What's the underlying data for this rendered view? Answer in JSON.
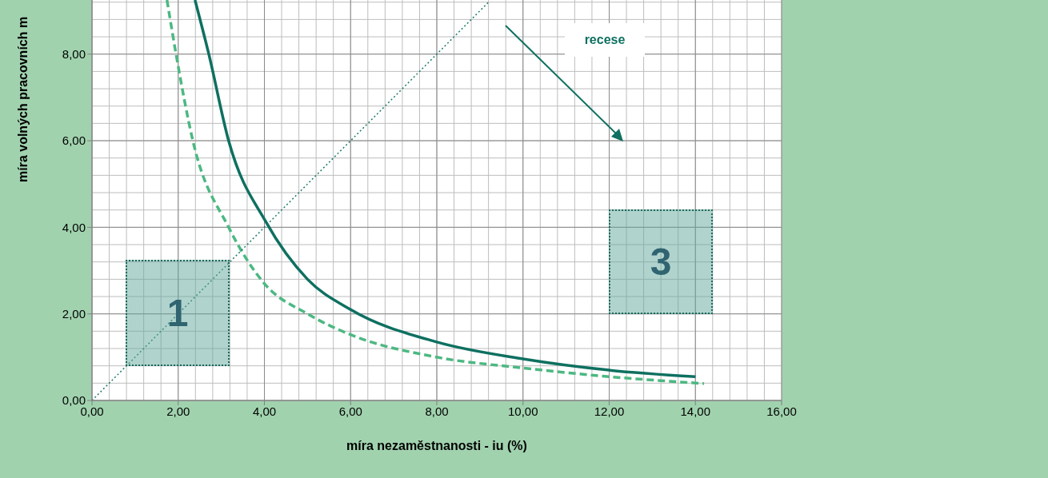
{
  "chart_data": {
    "type": "line",
    "xlabel": "míra nezaměstnanosti  - iu (%)",
    "ylabel": "míra volných pracovních m",
    "xlim": [
      0,
      16
    ],
    "xticks": [
      {
        "value": 0,
        "label": "0,00"
      },
      {
        "value": 2,
        "label": "2,00"
      },
      {
        "value": 4,
        "label": "4,00"
      },
      {
        "value": 6,
        "label": "6,00"
      },
      {
        "value": 8,
        "label": "8,00"
      },
      {
        "value": 10,
        "label": "10,00"
      },
      {
        "value": 12,
        "label": "12,00"
      },
      {
        "value": 14,
        "label": "14,00"
      },
      {
        "value": 16,
        "label": "16,00"
      }
    ],
    "ylim": [
      0,
      9.25
    ],
    "yticks": [
      {
        "value": 0,
        "label": "0,00"
      },
      {
        "value": 2,
        "label": "2,00"
      },
      {
        "value": 4,
        "label": "4,00"
      },
      {
        "value": 6,
        "label": "6,00"
      },
      {
        "value": 8,
        "label": "8,00"
      }
    ],
    "grid": true,
    "marker": "none",
    "series": [
      {
        "color": "#0e7060",
        "line_style": "solid",
        "x": [
          2.39,
          2.71,
          3.17,
          4.05,
          5,
          6,
          8,
          10,
          12,
          14
        ],
        "values": [
          9.25,
          8,
          6,
          4.1,
          2.8,
          2.1,
          1.35,
          0.96,
          0.7,
          0.55
        ]
      },
      {
        "color": "#4cb882",
        "line_style": "dashed",
        "x": [
          1.74,
          1.95,
          2.34,
          3.17,
          4,
          5,
          6,
          8,
          10,
          12,
          14.2
        ],
        "values": [
          9.25,
          8,
          6,
          4,
          2.7,
          2.0,
          1.52,
          1.0,
          0.75,
          0.55,
          0.39
        ]
      },
      {
        "color": "#1a7a6a",
        "line_style": "dotted",
        "x": [
          0,
          9.2
        ],
        "values": [
          0,
          9.2
        ]
      }
    ],
    "annotations": [
      "1",
      "3",
      "recese"
    ]
  }
}
